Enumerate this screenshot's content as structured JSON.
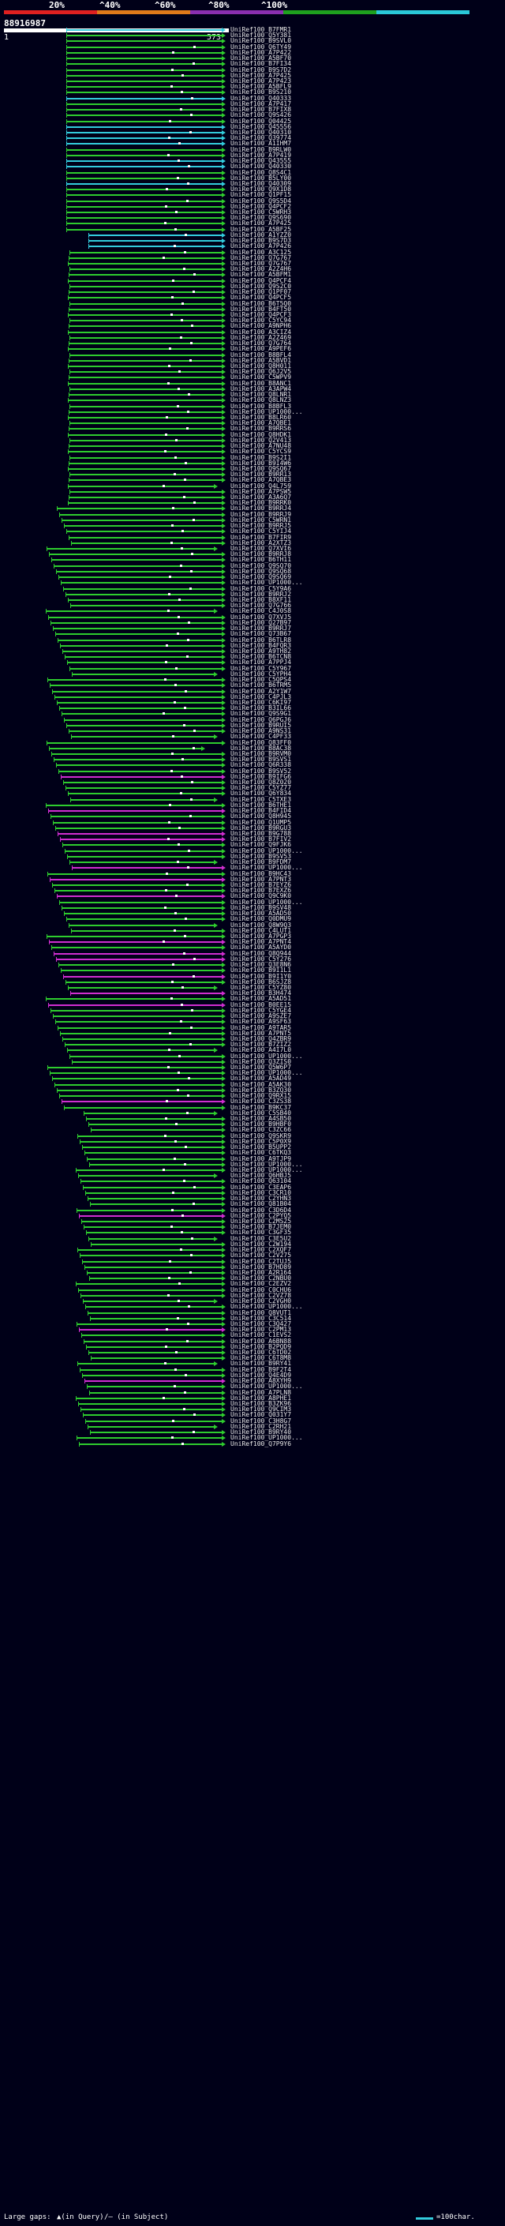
{
  "scale": {
    "labels": [
      "20%",
      "^40%",
      "^60%",
      "^80%",
      "^100%"
    ],
    "colors": [
      "#e02020",
      "#e07a1a",
      "#8a2fb0",
      "#1ea01e",
      "#2ac8d8"
    ]
  },
  "query": {
    "id": "88916987",
    "start": "1",
    "end": "573"
  },
  "footer": {
    "large_gaps": "Large gaps:",
    "query_gap": "▲(in Query)",
    "subject_gap": "/— (in Subject)",
    "legend": "=100char."
  },
  "colors": {
    "green": "#2ecc2e",
    "cyan": "#33ccdd",
    "magenta": "#d02ed0"
  },
  "hits": [
    "UniRef100_B7FMR1",
    "UniRef100_Q5Y381",
    "UniRef100_B9SVL0",
    "UniRef100_Q6TY49",
    "UniRef100_A7P422",
    "UniRef100_A5BF70",
    "UniRef100_B7FI34",
    "UniRef100_B9S7D2",
    "UniRef100_A7P425",
    "UniRef100_A7P423",
    "UniRef100_A5BFL9",
    "UniRef100_B9S210",
    "UniRef100_Q40333",
    "UniRef100_A7P417",
    "UniRef100_B7FIX8",
    "UniRef100_Q9S426",
    "UniRef100_Q04425",
    "UniRef100_Q45556",
    "UniRef100_Q40310",
    "UniRef100_Q39774",
    "UniRef100_A1IHM7",
    "UniRef100_B9RLW0",
    "UniRef100_A7P419",
    "UniRef100_Q43555",
    "UniRef100_Q40330",
    "UniRef100_Q8S4C1",
    "UniRef100_B5LY00",
    "UniRef100_Q40309",
    "UniRef100_Q9X1D8",
    "UniRef100_Q1PF15",
    "UniRef100_Q9S5D4",
    "UniRef100_Q4PCF2",
    "UniRef100_C5WRH3",
    "UniRef100_Q9S690",
    "UniRef100_A7P425",
    "UniRef100_A5BF25",
    "UniRef100_A1YZZ0",
    "UniRef100_B9S7D3",
    "UniRef100_A7P426",
    "UniRef100_A3C125",
    "UniRef100_Q7G767",
    "UniRef100_Q7G767",
    "UniRef100_A2Z4H6",
    "UniRef100_A5BFM1",
    "UniRef100_Q4PCF4",
    "UniRef100_Q9S2C0",
    "UniRef100_Q1PF07",
    "UniRef100_Q4PCF5",
    "UniRef100_B6T5Q0",
    "UniRef100_B4FT50",
    "UniRef100_Q4PCF3",
    "UniRef100_C5YC94",
    "UniRef100_A9NPH6",
    "UniRef100_A3CIZ4",
    "UniRef100_A2Z469",
    "UniRef100_Q7G764",
    "UniRef100_A9PEF6",
    "UniRef100_B8BFL4",
    "UniRef100_A5BVD1",
    "UniRef100_Q8H011",
    "UniRef100_Q6J2V5",
    "UniRef100_C5WPV9",
    "UniRef100_B8ANC1",
    "UniRef100_A3APW4",
    "UniRef100_Q8LNR1",
    "UniRef100_Q8LNZ3",
    "UniRef100_B8BFL3",
    "UniRef100_UP1000...",
    "UniRef100_B8LR60",
    "UniRef100_A7QBE1",
    "UniRef100_B9RRS6",
    "UniRef100_Q8HDK1",
    "UniRef100_Q2V413",
    "UniRef100_A7NU48",
    "UniRef100_C5YCS9",
    "UniRef100_B9S2I1",
    "UniRef100_B9I4W6",
    "UniRef100_Q9SQ67",
    "UniRef100_B9RR13",
    "UniRef100_A7QBE3",
    "UniRef100_Q4L759",
    "UniRef100_A7PSW5",
    "UniRef100_A3A6Q7",
    "UniRef100_B9RRK0",
    "UniRef100_B9RRJ4",
    "UniRef100_B9RRJ9",
    "UniRef100_C5WRN1",
    "UniRef100_B9RRJ5",
    "UniRef100_C5YIJ4",
    "UniRef100_B7FIR9",
    "UniRef100_A2XTZ3",
    "UniRef100_Q7XVI6",
    "UniRef100_B9RRJ8",
    "UniRef100_B6TH11",
    "UniRef100_Q9SQ70",
    "UniRef100_Q9SQ68",
    "UniRef100_Q9SQ69",
    "UniRef100_UP1000...",
    "UniRef100_C5Y9A6",
    "UniRef100_B9RRJ2",
    "UniRef100_B8XF11",
    "UniRef100_Q7G766",
    "UniRef100_C4J0S8",
    "UniRef100_Q7XVJ5",
    "UniRef100_Q27B97",
    "UniRef100_B9RRJ7",
    "UniRef100_Q73B67",
    "UniRef100_B6TLR8",
    "UniRef100_B4FQR3",
    "UniRef100_A9TH82",
    "UniRef100_B6TCN8",
    "UniRef100_A7PPJ4",
    "UniRef100_C5Y967",
    "UniRef100_C5YPH4",
    "UniRef100_C5QPS4",
    "UniRef100_B6TRM5",
    "UniRef100_A2Y1W7",
    "UniRef100_C4PJL3",
    "UniRef100_C6KI97",
    "UniRef100_B3IL66",
    "UniRef100_Q9S9G1",
    "UniRef100_Q6PGJ6",
    "UniRef100_B9RUI5",
    "UniRef100_A9NS31",
    "UniRef100_C4PF33",
    "UniRef100_Q83FF0",
    "UniRef100_B8AC38",
    "UniRef100_B9RVM0",
    "UniRef100_B9SVS1",
    "UniRef100_Q6R338",
    "UniRef100_B9SV52",
    "UniRef100_B9IFG6",
    "UniRef100_Q8Z020",
    "UniRef100_C5YZ77",
    "UniRef100_Q6Y834",
    "UniRef100_C5TXE3",
    "UniRef100_B6THE1",
    "UniRef100_B4FID4",
    "UniRef100_Q8H945",
    "UniRef100_Q1UMP5",
    "UniRef100_B9RGU3",
    "UniRef100_B9G788",
    "UniRef100_B7FIV2",
    "UniRef100_Q9FJK6",
    "UniRef100_UP1000...",
    "UniRef100_B9SV53",
    "UniRef100_B9FDM7",
    "UniRef100_UP1000...",
    "UniRef100_B9HC43",
    "UniRef100_A7PNT3",
    "UniRef100_B7EYZ6",
    "UniRef100_B7EXZ6",
    "UniRef100_Q9C9K0",
    "UniRef100_UP1000...",
    "UniRef100_B9SV48",
    "UniRef100_A5AD50",
    "UniRef100_Q0DMU9",
    "UniRef100_Q8W9Q3",
    "UniRef100_C4LUT1",
    "UniRef100_A7PGP3",
    "UniRef100_A7PNT4",
    "UniRef100_A5AYD0",
    "UniRef100_Q8Q944",
    "UniRef100_C5Y276",
    "UniRef100_Q3E8N6",
    "UniRef100_B9I1L1",
    "UniRef100_B9I1Y0",
    "UniRef100_B6SJZ8",
    "UniRef100_C5YZ80",
    "UniRef100_B3H474",
    "UniRef100_A5AD51",
    "UniRef100_B0EE15",
    "UniRef100_C5YGE4",
    "UniRef100_A9SZE7",
    "UniRef100_A9SF63",
    "UniRef100_A9TAR5",
    "UniRef100_A7PNT5",
    "UniRef100_Q4ZBR9",
    "UniRef100_B7ZIZ2",
    "UniRef100_A4I7L0",
    "UniRef100_UP1000...",
    "UniRef100_Q3ZIS0",
    "UniRef100_Q5W6P7",
    "UniRef100_UP1000...",
    "UniRef100_A5AD49",
    "UniRef100_A5AK30",
    "UniRef100_B3ZQ30",
    "UniRef100_Q9RX15",
    "UniRef100_C3ZS38",
    "UniRef100_B9KC37",
    "UniRef100_C5SB40",
    "UniRef100_A4SB50",
    "UniRef100_B9HBF0",
    "UniRef100_C3ZC66",
    "UniRef100_Q9SKR9",
    "UniRef100_C5P0X9",
    "UniRef100_B5UPP2",
    "UniRef100_C6TKQ3",
    "UniRef100_A9TJP9",
    "UniRef100_UP1000...",
    "UniRef100_UP1000...",
    "UniRef100_Q6HBJ5",
    "UniRef100_Q63104",
    "UniRef100_C3EAP6",
    "UniRef100_C3CR10",
    "UniRef100_C2YHN3",
    "UniRef100_Q81B04",
    "UniRef100_C3D6D4",
    "UniRef100_C2PYQ5",
    "UniRef100_C2MS25",
    "UniRef100_B7JEM0",
    "UniRef100_C3GF35",
    "UniRef100_C3E5U2",
    "UniRef100_C2W194",
    "UniRef100_C2XQF7",
    "UniRef100_C2V275",
    "UniRef100_C2TUJ5",
    "UniRef100_B7HD89",
    "UniRef100_A2R164",
    "UniRef100_C2NBU0",
    "UniRef100_C2EZV2",
    "UniRef100_C0CHU6",
    "UniRef100_C2VZ78",
    "UniRef100_C2VGH0",
    "UniRef100_UP1000...",
    "UniRef100_Q8VUT1",
    "UniRef100_C3C514",
    "UniRef100_C3Q427",
    "UniRef100_C2PM13",
    "UniRef100_C1EVS2",
    "UniRef100_A6BN88",
    "UniRef100_B2PQD9",
    "UniRef100_C6TD02",
    "UniRef100_C6T8M8",
    "UniRef100_B9RY41",
    "UniRef100_B9F2T4",
    "UniRef100_Q4E4D9",
    "UniRef100_A8XYH9",
    "UniRef100_UP1000...",
    "UniRef100_A7PLN8",
    "UniRef100_A8PHE1",
    "UniRef100_B3ZK96",
    "UniRef100_Q9CIM3",
    "UniRef100_Q031Y7",
    "UniRef100_C3H8G7",
    "UniRef100_C2RH21",
    "UniRef100_B9RY40",
    "UniRef100_UP1000...",
    "UniRef100_Q7P9Y6"
  ]
}
